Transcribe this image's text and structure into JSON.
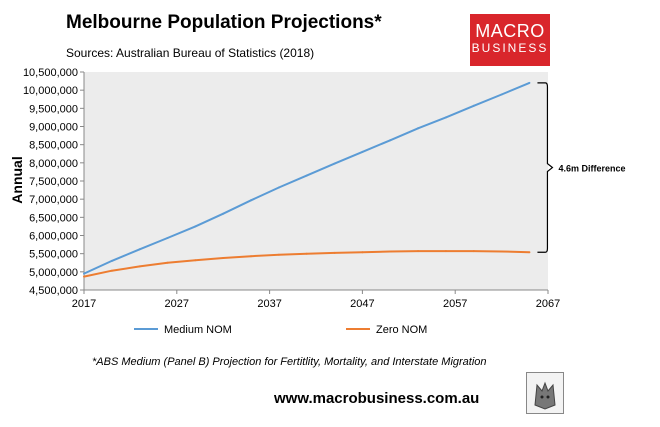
{
  "header": {
    "title": "Melbourne Population Projections*",
    "subtitle": "Sources: Australian Bureau of Statistics (2018)"
  },
  "logo": {
    "line1": "MACRO",
    "line2": "BUSINESS"
  },
  "footer": {
    "footnote": "*ABS Medium (Panel B) Projection for Fertitlity, Mortality, and Interstate Migration",
    "url": "www.macrobusiness.com.au"
  },
  "colors": {
    "medium": "#5b9bd5",
    "zero": "#ed7d31",
    "plot_bg": "#ececec",
    "logo_bg": "#d9262b"
  },
  "chart_data": {
    "type": "line",
    "title": "Melbourne Population Projections*",
    "xlabel": "",
    "ylabel": "Annual",
    "xlim": [
      2017,
      2067
    ],
    "ylim": [
      4500000,
      10500000
    ],
    "x_ticks": [
      2017,
      2027,
      2037,
      2047,
      2057,
      2067
    ],
    "x_tick_labels": [
      "2017",
      "2027",
      "2037",
      "2047",
      "2057",
      "2067"
    ],
    "y_ticks": [
      4500000,
      5000000,
      5500000,
      6000000,
      6500000,
      7000000,
      7500000,
      8000000,
      8500000,
      9000000,
      9500000,
      10000000,
      10500000
    ],
    "y_tick_labels": [
      "4,500,000",
      "5,000,000",
      "5,500,000",
      "6,000,000",
      "6,500,000",
      "7,000,000",
      "7,500,000",
      "8,000,000",
      "8,500,000",
      "9,000,000",
      "9,500,000",
      "10,000,000",
      "10,500,000"
    ],
    "grid": false,
    "legend_position": "bottom",
    "series": [
      {
        "name": "Medium NOM",
        "color": "#5b9bd5",
        "x": [
          2017,
          2020,
          2023,
          2026,
          2029,
          2032,
          2035,
          2038,
          2041,
          2044,
          2047,
          2050,
          2053,
          2056,
          2059,
          2062,
          2065
        ],
        "values": [
          4950000,
          5300000,
          5620000,
          5930000,
          6250000,
          6600000,
          6970000,
          7320000,
          7650000,
          7980000,
          8300000,
          8620000,
          8950000,
          9250000,
          9570000,
          9880000,
          10200000
        ]
      },
      {
        "name": "Zero NOM",
        "color": "#ed7d31",
        "x": [
          2017,
          2020,
          2023,
          2026,
          2029,
          2032,
          2035,
          2038,
          2041,
          2044,
          2047,
          2050,
          2053,
          2056,
          2059,
          2062,
          2065
        ],
        "values": [
          4870000,
          5030000,
          5150000,
          5250000,
          5320000,
          5380000,
          5430000,
          5470000,
          5500000,
          5520000,
          5540000,
          5560000,
          5570000,
          5570000,
          5570000,
          5560000,
          5540000
        ]
      }
    ],
    "annotation": {
      "text": "4.6m Difference",
      "from_year": 2065,
      "range": [
        5540000,
        10200000
      ]
    }
  }
}
